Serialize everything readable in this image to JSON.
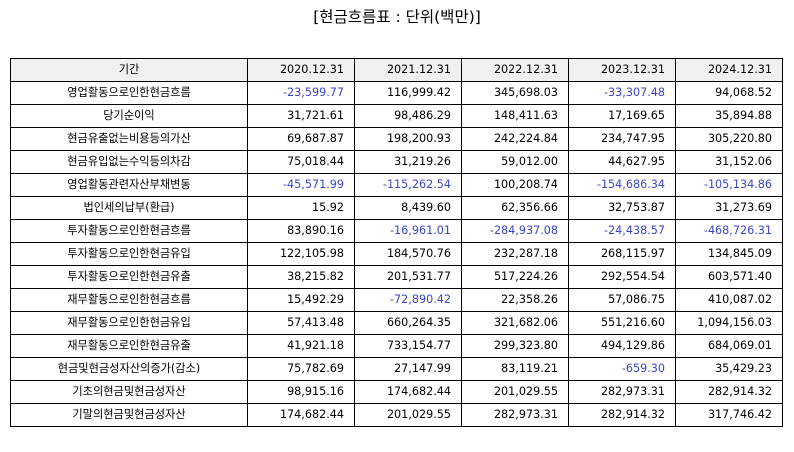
{
  "title": "[현금흐름표 : 단위(백만)]",
  "colors": {
    "negative_text": "#3b45c8",
    "header_background": "#f0f0f0",
    "border": "#000000"
  },
  "table": {
    "header": [
      "기간",
      "2020.12.31",
      "2021.12.31",
      "2022.12.31",
      "2023.12.31",
      "2024.12.31"
    ],
    "rows": [
      {
        "label": "영업활동으로인한현금흐름",
        "values": [
          "-23,599.77",
          "116,999.42",
          "345,698.03",
          "-33,307.48",
          "94,068.52"
        ]
      },
      {
        "label": "당기순이익",
        "values": [
          "31,721.61",
          "98,486.29",
          "148,411.63",
          "17,169.65",
          "35,894.88"
        ]
      },
      {
        "label": "현금유출없는비용등의가산",
        "values": [
          "69,687.87",
          "198,200.93",
          "242,224.84",
          "234,747.95",
          "305,220.80"
        ]
      },
      {
        "label": "현금유입없는수익등의차감",
        "values": [
          "75,018.44",
          "31,219.26",
          "59,012.00",
          "44,627.95",
          "31,152.06"
        ]
      },
      {
        "label": "영업활동관련자산부채변동",
        "values": [
          "-45,571.99",
          "-115,262.54",
          "100,208.74",
          "-154,686.34",
          "-105,134.86"
        ]
      },
      {
        "label": "법인세의납부(환급)",
        "values": [
          "15.92",
          "8,439.60",
          "62,356.66",
          "32,753.87",
          "31,273.69"
        ]
      },
      {
        "label": "투자활동으로인한현금흐름",
        "values": [
          "83,890.16",
          "-16,961.01",
          "-284,937.08",
          "-24,438.57",
          "-468,726.31"
        ]
      },
      {
        "label": "투자활동으로인한현금유입",
        "values": [
          "122,105.98",
          "184,570.76",
          "232,287.18",
          "268,115.97",
          "134,845.09"
        ]
      },
      {
        "label": "투자활동으로인한현금유출",
        "values": [
          "38,215.82",
          "201,531.77",
          "517,224.26",
          "292,554.54",
          "603,571.40"
        ]
      },
      {
        "label": "재무활동으로인한현금흐름",
        "values": [
          "15,492.29",
          "-72,890.42",
          "22,358.26",
          "57,086.75",
          "410,087.02"
        ]
      },
      {
        "label": "재무활동으로인한현금유입",
        "values": [
          "57,413.48",
          "660,264.35",
          "321,682.06",
          "551,216.60",
          "1,094,156.03"
        ]
      },
      {
        "label": "재무활동으로인한현금유출",
        "values": [
          "41,921.18",
          "733,154.77",
          "299,323.80",
          "494,129.86",
          "684,069.01"
        ]
      },
      {
        "label": "현금및현금성자산의증가(감소)",
        "values": [
          "75,782.69",
          "27,147.99",
          "83,119.21",
          "-659.30",
          "35,429.23"
        ]
      },
      {
        "label": "기초의현금및현금성자산",
        "values": [
          "98,915.16",
          "174,682.44",
          "201,029.55",
          "282,973.31",
          "282,914.32"
        ]
      },
      {
        "label": "기말의현금및현금성자산",
        "values": [
          "174,682.44",
          "201,029.55",
          "282,973.31",
          "282,914.32",
          "317,746.42"
        ]
      }
    ]
  }
}
